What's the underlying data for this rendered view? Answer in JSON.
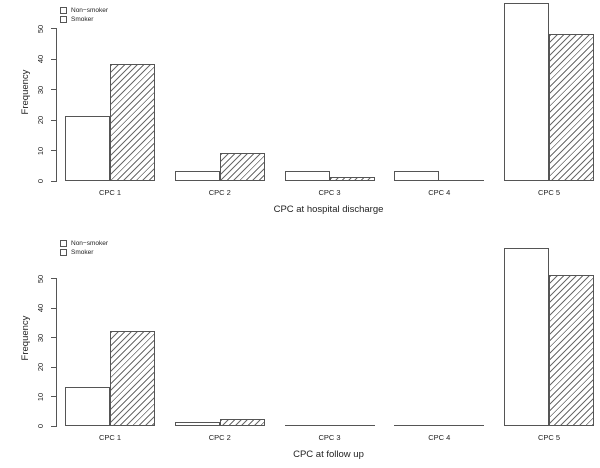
{
  "figure": {
    "background": "#ffffff"
  },
  "colors": {
    "bar_fill": "#ffffff",
    "line": "#555555",
    "hatch": "#6a6a6a",
    "text": "#222222"
  },
  "chart_data": [
    {
      "type": "bar",
      "title": "",
      "xlabel": "CPC at hospital discharge",
      "ylabel": "Frequency",
      "categories": [
        "CPC 1",
        "CPC 2",
        "CPC 3",
        "CPC 4",
        "CPC 5"
      ],
      "series": [
        {
          "name": "Non−smoker",
          "style": "open",
          "values": [
            21,
            3,
            3,
            3,
            58
          ]
        },
        {
          "name": "Smoker",
          "style": "hatched",
          "values": [
            38,
            9,
            1,
            0,
            48
          ]
        }
      ],
      "yticks": [
        0,
        10,
        20,
        30,
        40,
        50
      ],
      "ylim": [
        0,
        58
      ],
      "grid": false,
      "legend_position": "top-left"
    },
    {
      "type": "bar",
      "title": "",
      "xlabel": "CPC at follow up",
      "ylabel": "Frequency",
      "categories": [
        "CPC 1",
        "CPC 2",
        "CPC 3",
        "CPC 4",
        "CPC 5"
      ],
      "series": [
        {
          "name": "Non−smoker",
          "style": "open",
          "values": [
            13,
            1,
            0,
            0,
            60
          ]
        },
        {
          "name": "Smoker",
          "style": "hatched",
          "values": [
            32,
            2,
            0,
            0,
            51
          ]
        }
      ],
      "yticks": [
        0,
        10,
        20,
        30,
        40,
        50
      ],
      "ylim": [
        0,
        60
      ],
      "grid": false,
      "legend_position": "top-left"
    }
  ]
}
